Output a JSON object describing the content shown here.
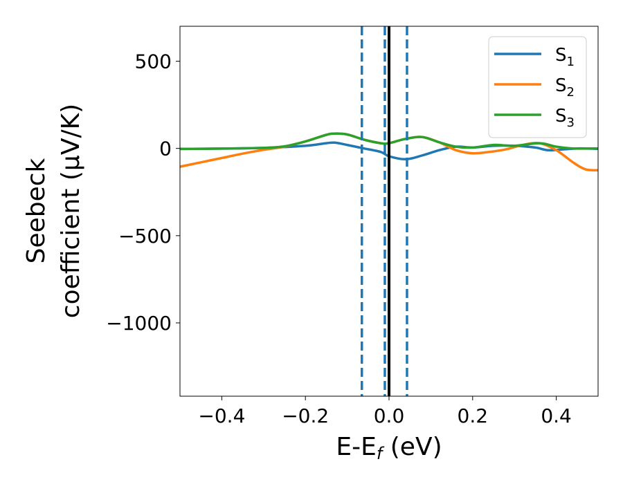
{
  "chart_data": {
    "type": "line",
    "xlabel": "E-E",
    "xlabel_sub": "f",
    "xlabel_unit": " (eV)",
    "ylabel_line1": "Seebeck",
    "ylabel_line2": "coefficient  (μV/K)",
    "xlim": [
      -0.5,
      0.5
    ],
    "ylim": [
      -1420,
      700
    ],
    "x_ticks": [
      -0.4,
      -0.2,
      0.0,
      0.2,
      0.4
    ],
    "x_tick_labels": [
      "−0.4",
      "−0.2",
      "0.0",
      "0.2",
      "0.4"
    ],
    "y_ticks": [
      500,
      0,
      -500,
      -1000
    ],
    "y_tick_labels": [
      "500",
      "0",
      "−500",
      "−1000"
    ],
    "grid": false,
    "legend_position": "top-right",
    "vertical_lines": [
      {
        "x": -0.065,
        "style": "dashed",
        "color": "#1f77b4"
      },
      {
        "x": -0.01,
        "style": "dashed",
        "color": "#1f77b4"
      },
      {
        "x": 0.0,
        "style": "solid",
        "color": "#000000"
      },
      {
        "x": 0.043,
        "style": "dashed",
        "color": "#1f77b4"
      }
    ],
    "series": [
      {
        "name": "S",
        "name_sub": "1",
        "color": "#1f77b4",
        "points": [
          [
            -0.5,
            -3
          ],
          [
            -0.4,
            -1
          ],
          [
            -0.3,
            3
          ],
          [
            -0.2,
            15
          ],
          [
            -0.15,
            30
          ],
          [
            -0.13,
            33
          ],
          [
            -0.1,
            20
          ],
          [
            -0.06,
            0
          ],
          [
            -0.02,
            -20
          ],
          [
            0.0,
            -45
          ],
          [
            0.04,
            -62
          ],
          [
            0.08,
            -40
          ],
          [
            0.12,
            -10
          ],
          [
            0.16,
            10
          ],
          [
            0.2,
            5
          ],
          [
            0.25,
            15
          ],
          [
            0.3,
            15
          ],
          [
            0.35,
            5
          ],
          [
            0.38,
            -10
          ],
          [
            0.42,
            -5
          ],
          [
            0.45,
            0
          ],
          [
            0.5,
            -2
          ]
        ]
      },
      {
        "name": "S",
        "name_sub": "2",
        "color": "#ff7f0e",
        "points": [
          [
            -0.5,
            -105
          ],
          [
            -0.45,
            -80
          ],
          [
            -0.4,
            -55
          ],
          [
            -0.35,
            -30
          ],
          [
            -0.3,
            -8
          ],
          [
            -0.25,
            10
          ],
          [
            -0.2,
            40
          ],
          [
            -0.15,
            78
          ],
          [
            -0.13,
            85
          ],
          [
            -0.1,
            80
          ],
          [
            -0.06,
            50
          ],
          [
            -0.02,
            30
          ],
          [
            0.0,
            30
          ],
          [
            0.04,
            55
          ],
          [
            0.08,
            65
          ],
          [
            0.12,
            35
          ],
          [
            0.16,
            -10
          ],
          [
            0.2,
            -28
          ],
          [
            0.24,
            -20
          ],
          [
            0.28,
            -5
          ],
          [
            0.32,
            20
          ],
          [
            0.36,
            30
          ],
          [
            0.4,
            -10
          ],
          [
            0.44,
            -80
          ],
          [
            0.47,
            -120
          ],
          [
            0.5,
            -125
          ]
        ]
      },
      {
        "name": "S",
        "name_sub": "3",
        "color": "#2ca02c",
        "points": [
          [
            -0.5,
            -3
          ],
          [
            -0.4,
            -1
          ],
          [
            -0.3,
            3
          ],
          [
            -0.25,
            12
          ],
          [
            -0.2,
            40
          ],
          [
            -0.15,
            78
          ],
          [
            -0.13,
            85
          ],
          [
            -0.1,
            80
          ],
          [
            -0.06,
            50
          ],
          [
            -0.02,
            30
          ],
          [
            0.0,
            30
          ],
          [
            0.04,
            55
          ],
          [
            0.08,
            65
          ],
          [
            0.12,
            35
          ],
          [
            0.16,
            10
          ],
          [
            0.2,
            5
          ],
          [
            0.25,
            20
          ],
          [
            0.3,
            15
          ],
          [
            0.36,
            30
          ],
          [
            0.4,
            10
          ],
          [
            0.44,
            0
          ],
          [
            0.5,
            0
          ]
        ]
      }
    ]
  }
}
